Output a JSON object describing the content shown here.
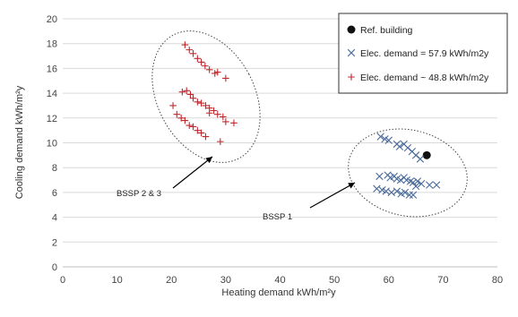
{
  "chart_data": {
    "type": "scatter",
    "title": "",
    "xlabel": "Heating demand kWh/m²y",
    "ylabel": "Cooling demand kWh/m²y",
    "xlim": [
      0,
      80
    ],
    "ylim": [
      0,
      20
    ],
    "xticks": [
      0,
      10,
      20,
      30,
      40,
      50,
      60,
      70,
      80
    ],
    "yticks": [
      0,
      2,
      4,
      6,
      8,
      10,
      12,
      14,
      16,
      18,
      20
    ],
    "grid": "horizontal",
    "legend_position": "top-right",
    "colors": {
      "ref": "#111111",
      "elec_57": "#4a6b9a",
      "elec_48": "#c0282d",
      "grid": "#d9d9d9",
      "ellipse": "#444444"
    },
    "series": [
      {
        "name": "Ref. building",
        "marker": "circle",
        "points": [
          [
            67.0,
            9.0
          ]
        ]
      },
      {
        "name": "Elec. demand = 57.9 kWh/m2y",
        "marker": "x",
        "points": [
          [
            58.5,
            10.5
          ],
          [
            59.3,
            10.3
          ],
          [
            60.0,
            10.2
          ],
          [
            61.5,
            9.9
          ],
          [
            62.0,
            9.7
          ],
          [
            62.8,
            9.9
          ],
          [
            63.5,
            9.6
          ],
          [
            64.3,
            9.3
          ],
          [
            65.0,
            9.0
          ],
          [
            65.8,
            8.7
          ],
          [
            58.3,
            7.3
          ],
          [
            59.8,
            7.4
          ],
          [
            60.3,
            7.2
          ],
          [
            61.0,
            7.3
          ],
          [
            61.5,
            7.1
          ],
          [
            62.2,
            7.0
          ],
          [
            62.8,
            7.2
          ],
          [
            63.3,
            7.0
          ],
          [
            64.0,
            6.9
          ],
          [
            64.5,
            6.8
          ],
          [
            65.3,
            6.9
          ],
          [
            66.0,
            6.7
          ],
          [
            67.5,
            6.6
          ],
          [
            68.8,
            6.6
          ],
          [
            57.8,
            6.3
          ],
          [
            58.8,
            6.2
          ],
          [
            59.5,
            6.1
          ],
          [
            60.5,
            6.0
          ],
          [
            61.5,
            6.1
          ],
          [
            62.3,
            5.9
          ],
          [
            63.0,
            6.0
          ],
          [
            63.8,
            5.8
          ],
          [
            64.5,
            5.8
          ],
          [
            65.0,
            6.5
          ]
        ]
      },
      {
        "name": "Elec. demand ~ 48.8 kWh/m2y",
        "marker": "plus",
        "points": [
          [
            22.5,
            17.9
          ],
          [
            23.3,
            17.5
          ],
          [
            24.0,
            17.2
          ],
          [
            24.8,
            16.8
          ],
          [
            25.5,
            16.5
          ],
          [
            26.2,
            16.2
          ],
          [
            27.0,
            15.9
          ],
          [
            28.0,
            15.6
          ],
          [
            28.5,
            15.7
          ],
          [
            30.0,
            15.2
          ],
          [
            22.0,
            14.1
          ],
          [
            22.8,
            14.2
          ],
          [
            23.5,
            13.9
          ],
          [
            24.0,
            13.6
          ],
          [
            24.8,
            13.3
          ],
          [
            25.5,
            13.2
          ],
          [
            26.3,
            13.0
          ],
          [
            27.0,
            12.8
          ],
          [
            27.8,
            12.6
          ],
          [
            28.5,
            12.3
          ],
          [
            29.5,
            12.1
          ],
          [
            30.0,
            11.7
          ],
          [
            31.5,
            11.6
          ],
          [
            20.3,
            13.0
          ],
          [
            21.0,
            12.3
          ],
          [
            21.8,
            12.0
          ],
          [
            22.5,
            11.8
          ],
          [
            23.3,
            11.4
          ],
          [
            24.0,
            11.3
          ],
          [
            24.8,
            11.0
          ],
          [
            25.5,
            10.8
          ],
          [
            26.3,
            10.5
          ],
          [
            27.0,
            12.4
          ],
          [
            29.0,
            10.1
          ]
        ]
      }
    ],
    "annotations": [
      {
        "text": "BSSP 1"
      },
      {
        "text": "BSSP 2 & 3"
      }
    ]
  }
}
